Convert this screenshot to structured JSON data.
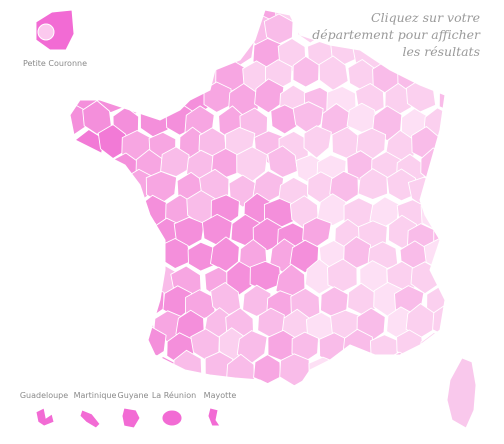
{
  "instruction": [
    "Cliquez sur votre",
    "département pour afficher",
    "les résultats"
  ],
  "insets": {
    "petite_couronne": "Petite Couronne",
    "overseas": [
      "Guadeloupe",
      "Martinique",
      "Guyane",
      "La Réunion",
      "Mayotte"
    ]
  }
}
